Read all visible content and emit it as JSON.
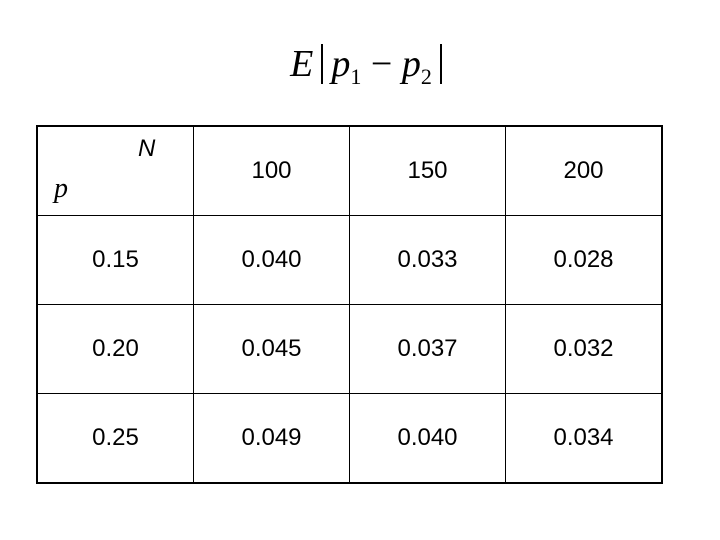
{
  "title": {
    "expectation": "E",
    "var1": "p",
    "sub1": "1",
    "minus": "−",
    "var2": "p",
    "sub2": "2"
  },
  "table": {
    "column_label": "N",
    "row_label": "p",
    "columns": [
      "100",
      "150",
      "200"
    ],
    "rows": [
      [
        "0.15",
        "0.040",
        "0.033",
        "0.028"
      ],
      [
        "0.20",
        "0.045",
        "0.037",
        "0.032"
      ],
      [
        "0.25",
        "0.049",
        "0.040",
        "0.034"
      ]
    ]
  }
}
